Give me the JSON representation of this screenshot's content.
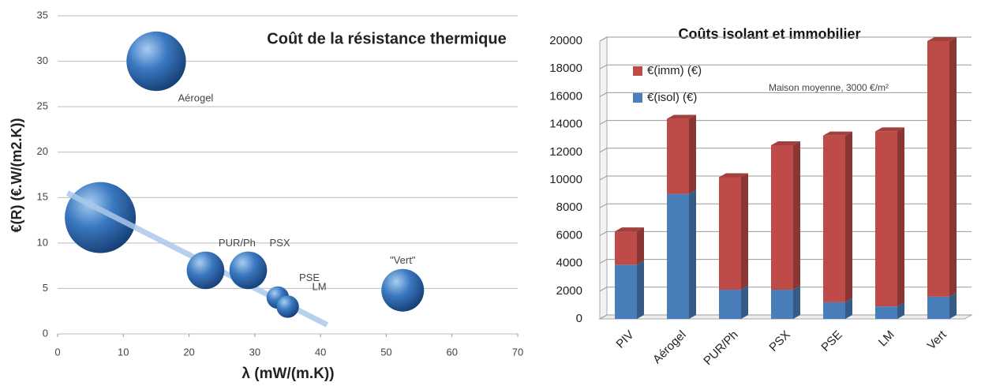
{
  "chart_data": [
    {
      "type": "bubble",
      "title": "Coût de la résistance thermique",
      "xlabel": "λ (mW/(m.K))",
      "ylabel": "€(R) (€.W/(m2.K))",
      "labels": [
        null,
        "Aérogel",
        "PUR/Ph",
        "PSX",
        "PSE",
        "LM",
        "\"Vert\""
      ],
      "x": [
        6.5,
        15,
        22.5,
        29,
        33.5,
        35,
        52.5
      ],
      "y": [
        12.8,
        30,
        7,
        7,
        4,
        3,
        4.8
      ],
      "sizes": [
        100,
        70,
        28,
        28,
        10,
        10,
        36
      ],
      "color": "#3a78c0",
      "trendline": {
        "x": [
          1.5,
          41
        ],
        "y": [
          15.5,
          1
        ],
        "color": "#a9c8ea"
      },
      "xlim": [
        0,
        70
      ],
      "xticks": [
        0,
        10,
        20,
        30,
        40,
        50,
        60,
        70
      ],
      "ylim": [
        0,
        35
      ],
      "yticks": [
        0,
        5,
        10,
        15,
        20,
        25,
        30,
        35
      ],
      "grid": true
    },
    {
      "type": "stacked_bar_3d",
      "title": "Coûts isolant et immobilier",
      "annotation": "Maison moyenne, 3000 €/m²",
      "categories": [
        "PIV",
        "Aérogel",
        "PUR/Ph",
        "PSX",
        "PSE",
        "LM",
        "Vert"
      ],
      "series": [
        {
          "name": "€(isol) (€)",
          "color": "#4a7ebb",
          "values": [
            3900,
            9000,
            2100,
            2100,
            1200,
            900,
            1600
          ]
        },
        {
          "name": "€(imm) (€)",
          "color": "#be4b48",
          "values": [
            2400,
            5400,
            8100,
            10400,
            12000,
            12600,
            18400
          ]
        }
      ],
      "legend": "upper left",
      "ylim": [
        0,
        20000
      ],
      "yticks": [
        0,
        2000,
        4000,
        6000,
        8000,
        10000,
        12000,
        14000,
        16000,
        18000,
        20000
      ],
      "grid": true
    }
  ]
}
